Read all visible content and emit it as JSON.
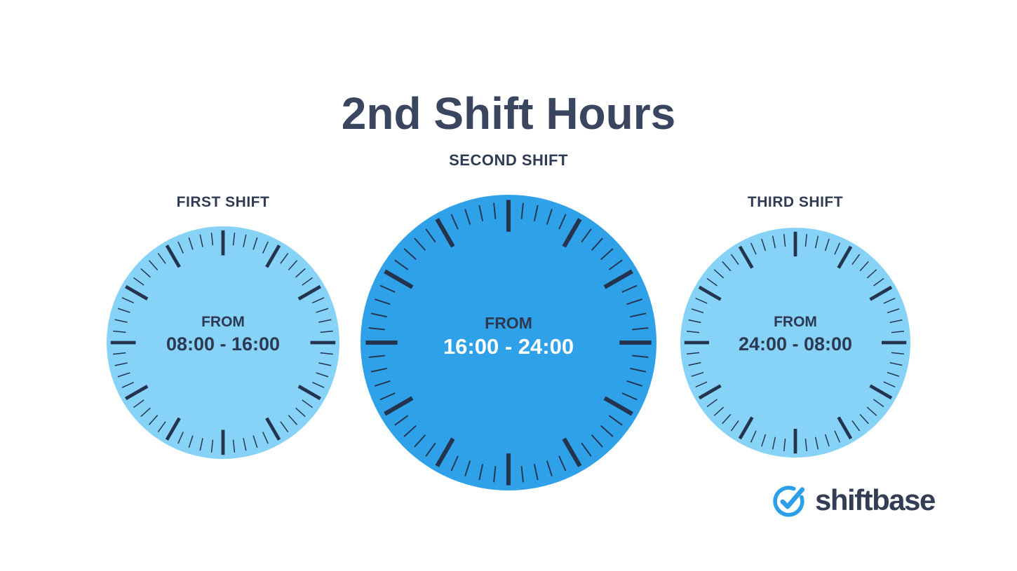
{
  "title": "2nd Shift Hours",
  "clocks": [
    {
      "id": "first",
      "label": "FIRST SHIFT",
      "from_label": "FROM",
      "time_range": "08:00 - 16:00",
      "highlighted": false
    },
    {
      "id": "second",
      "label": "SECOND SHIFT",
      "from_label": "FROM",
      "time_range": "16:00 - 24:00",
      "highlighted": true
    },
    {
      "id": "third",
      "label": "THIRD SHIFT",
      "from_label": "FROM",
      "time_range": "24:00 - 08:00",
      "highlighted": false
    }
  ],
  "logo": {
    "brand_text": "shiftbase",
    "icon": "clock-check-icon"
  },
  "colors": {
    "background": "#ffffff",
    "clock_light_fill": "#87d3f8",
    "clock_dark_fill": "#2fa1e9",
    "tick_color": "#24344e",
    "heading_text": "#3a4560",
    "label_text": "#303c55",
    "time_text_light_clock": "#2c3950",
    "time_text_dark_clock": "#ffffff",
    "logo_blue": "#2d9fe8",
    "logo_text_color": "#333e55"
  }
}
